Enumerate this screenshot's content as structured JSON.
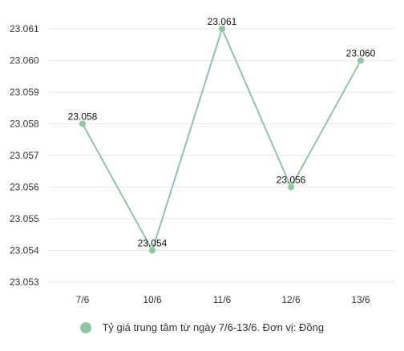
{
  "chart_data": {
    "type": "line",
    "categories": [
      "7/6",
      "10/6",
      "11/6",
      "12/6",
      "13/6"
    ],
    "series": [
      {
        "name": "Tỷ giá trung tâm từ ngày 7/6-13/6. Đơn vị: Đồng",
        "values": [
          23.058,
          23.054,
          23.061,
          23.056,
          23.06
        ],
        "labels": [
          "23.058",
          "23.054",
          "23.061",
          "23.056",
          "23.060"
        ],
        "color": "#8fc5a2"
      }
    ],
    "yticks": [
      23.053,
      23.054,
      23.055,
      23.056,
      23.057,
      23.058,
      23.059,
      23.06,
      23.061
    ],
    "ytick_labels": [
      "23.053",
      "23.054",
      "23.055",
      "23.056",
      "23.057",
      "23.058",
      "23.059",
      "23.060",
      "23.061"
    ],
    "ylim": [
      23.053,
      23.0615
    ],
    "grid": true,
    "legend_position": "bottom",
    "title": "",
    "xlabel": "",
    "ylabel": ""
  }
}
